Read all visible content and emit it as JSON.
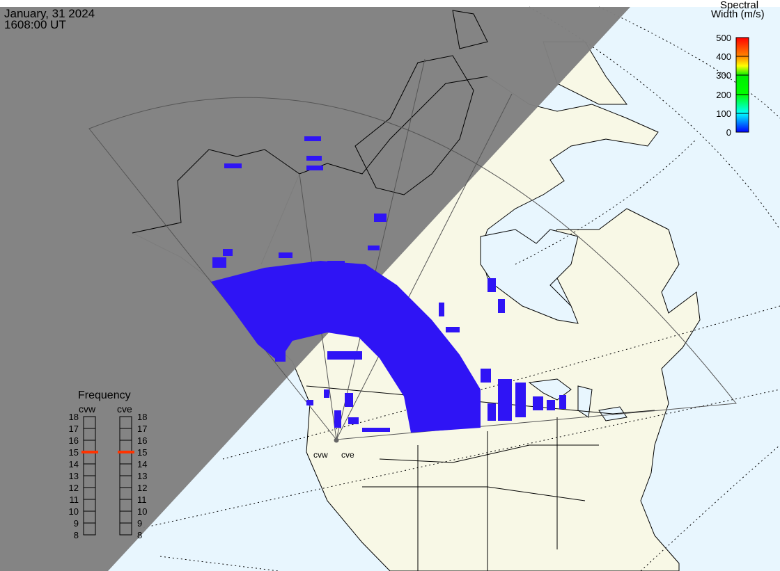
{
  "header": {
    "date": "January, 31 2024",
    "time": "1608:00 UT"
  },
  "colorbar": {
    "title_line1": "Spectral",
    "title_line2": "Width (m/s)",
    "ticks": [
      "500",
      "400",
      "300",
      "200",
      "100",
      "0"
    ],
    "range": [
      0,
      500
    ]
  },
  "frequency": {
    "title": "Frequency",
    "radars": [
      {
        "name": "cvw",
        "value": 15
      },
      {
        "name": "cve",
        "value": 15
      }
    ],
    "ticks": [
      "18",
      "17",
      "16",
      "15",
      "14",
      "13",
      "12",
      "11",
      "10",
      "9",
      "8"
    ],
    "marker_color": "#ff3300"
  },
  "radar_labels": [
    "cvw",
    "cve"
  ],
  "colors": {
    "night": "#808080",
    "ocean": "#e8f6fe",
    "land": "#f8f8e6",
    "scatter": "#2f14f5"
  }
}
